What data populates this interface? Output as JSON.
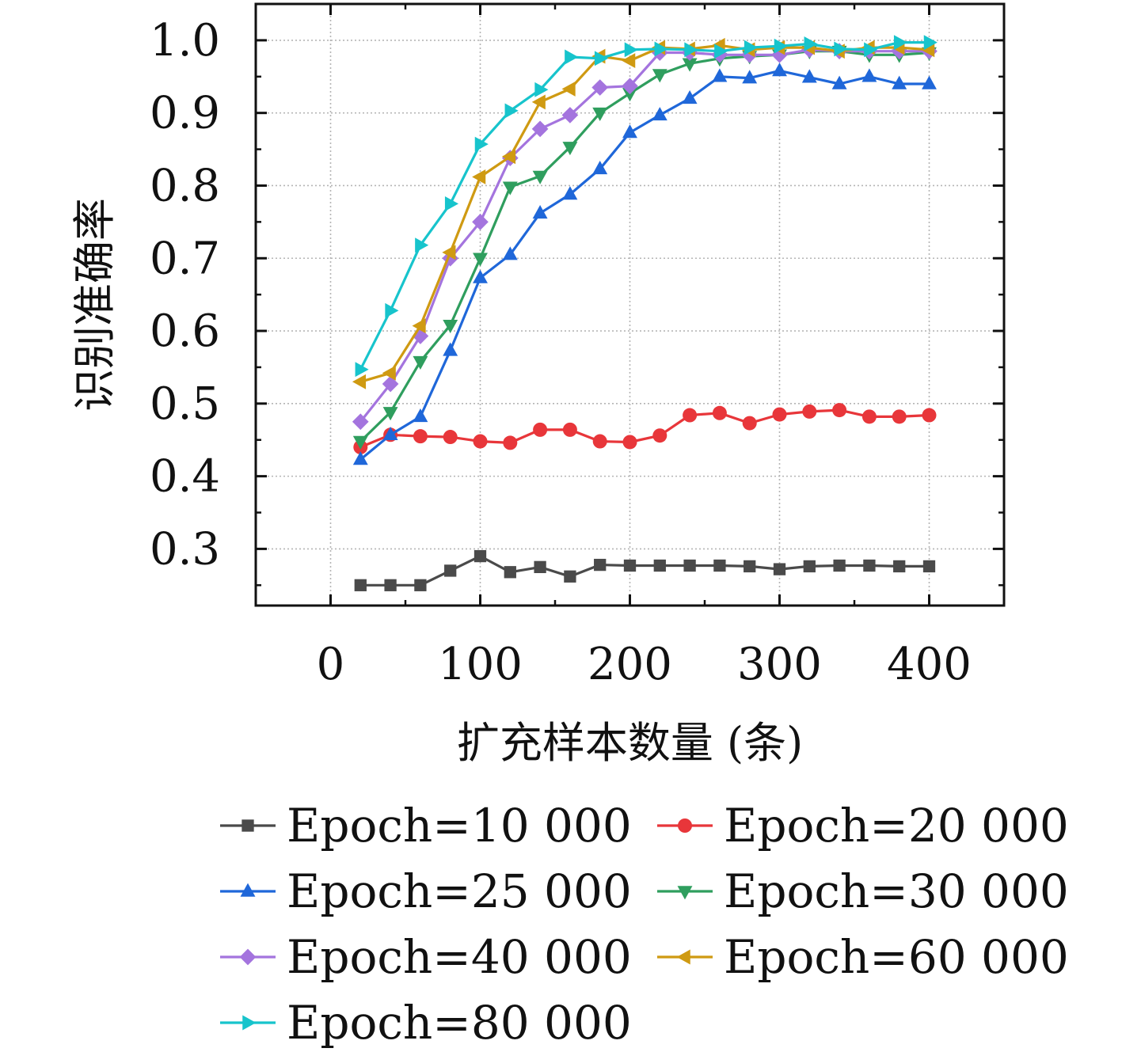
{
  "chart_data": {
    "type": "line",
    "xlabel": "扩充样本数量 (条)",
    "ylabel": "识别准确率",
    "xlim": [
      -50,
      450
    ],
    "ylim": [
      0.222,
      1.05
    ],
    "xticks": [
      0,
      100,
      200,
      300,
      400
    ],
    "xtick_labels": [
      "0",
      "100",
      "200",
      "300",
      "400"
    ],
    "yticks": [
      0.3,
      0.4,
      0.5,
      0.6,
      0.7,
      0.8,
      0.9,
      1.0
    ],
    "ytick_labels": [
      "0.3",
      "0.4",
      "0.5",
      "0.6",
      "0.7",
      "0.8",
      "0.9",
      "1.0"
    ],
    "grid": true,
    "legend_position": "bottom",
    "x": [
      20,
      40,
      60,
      80,
      100,
      120,
      140,
      160,
      180,
      200,
      220,
      240,
      260,
      280,
      300,
      320,
      340,
      360,
      380,
      400
    ],
    "series": [
      {
        "name": "Epoch=10 000",
        "color": "#4a4a4a",
        "marker": "square",
        "values": [
          0.25,
          0.25,
          0.25,
          0.27,
          0.29,
          0.268,
          0.275,
          0.262,
          0.278,
          0.277,
          0.277,
          0.277,
          0.277,
          0.276,
          0.272,
          0.276,
          0.277,
          0.277,
          0.276,
          0.276
        ]
      },
      {
        "name": "Epoch=20 000",
        "color": "#e8363a",
        "marker": "circle",
        "values": [
          0.44,
          0.457,
          0.455,
          0.454,
          0.448,
          0.446,
          0.464,
          0.464,
          0.448,
          0.447,
          0.456,
          0.484,
          0.487,
          0.473,
          0.485,
          0.489,
          0.491,
          0.482,
          0.482,
          0.484
        ]
      },
      {
        "name": "Epoch=25 000",
        "color": "#1f67d9",
        "marker": "triangle-up",
        "values": [
          0.423,
          0.457,
          0.482,
          0.573,
          0.673,
          0.705,
          0.762,
          0.788,
          0.823,
          0.873,
          0.897,
          0.92,
          0.95,
          0.948,
          0.958,
          0.949,
          0.94,
          0.95,
          0.94,
          0.94
        ]
      },
      {
        "name": "Epoch=30 000",
        "color": "#2f9e5e",
        "marker": "triangle-down",
        "values": [
          0.448,
          0.488,
          0.558,
          0.608,
          0.7,
          0.798,
          0.813,
          0.853,
          0.9,
          0.927,
          0.953,
          0.968,
          0.975,
          0.978,
          0.98,
          0.985,
          0.985,
          0.98,
          0.98,
          0.983
        ]
      },
      {
        "name": "Epoch=40 000",
        "color": "#a474de",
        "marker": "diamond",
        "values": [
          0.475,
          0.527,
          0.593,
          0.7,
          0.75,
          0.838,
          0.878,
          0.897,
          0.935,
          0.937,
          0.983,
          0.983,
          0.98,
          0.98,
          0.98,
          0.987,
          0.985,
          0.985,
          0.985,
          0.985
        ]
      },
      {
        "name": "Epoch=60 000",
        "color": "#cf9a12",
        "marker": "triangle-left",
        "values": [
          0.53,
          0.542,
          0.607,
          0.708,
          0.812,
          0.84,
          0.915,
          0.933,
          0.978,
          0.972,
          0.99,
          0.988,
          0.993,
          0.987,
          0.99,
          0.99,
          0.985,
          0.99,
          0.99,
          0.987
        ]
      },
      {
        "name": "Epoch=80 000",
        "color": "#17c4cc",
        "marker": "triangle-right",
        "values": [
          0.547,
          0.628,
          0.718,
          0.775,
          0.857,
          0.903,
          0.932,
          0.977,
          0.975,
          0.987,
          0.988,
          0.987,
          0.985,
          0.99,
          0.992,
          0.995,
          0.988,
          0.987,
          0.997,
          0.997
        ]
      }
    ]
  }
}
